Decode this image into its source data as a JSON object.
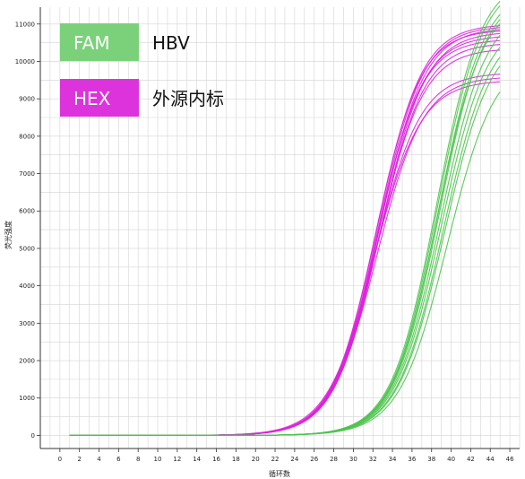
{
  "chart_data": {
    "type": "line",
    "title": "",
    "xlabel": "循环数",
    "ylabel": "荧光强度",
    "xlim": [
      -2,
      47
    ],
    "ylim": [
      -350,
      11450
    ],
    "x_ticks": [
      0,
      2,
      4,
      6,
      8,
      10,
      12,
      14,
      16,
      18,
      20,
      22,
      24,
      26,
      28,
      30,
      32,
      34,
      36,
      38,
      40,
      42,
      44,
      46
    ],
    "y_ticks": [
      0,
      1000,
      2000,
      3000,
      4000,
      5000,
      6000,
      7000,
      8000,
      9000,
      10000,
      11000
    ],
    "grid": true,
    "legend_position": "top-left",
    "colors": {
      "FAM": "#4cc44c",
      "HEX": "#dd22dd",
      "grid": "#d4d4d4",
      "axis": "#333333",
      "legend_fam_box": "#7ad17a",
      "legend_hex_box": "#dd33dd"
    },
    "legend": [
      {
        "box": "FAM",
        "label": "HBV"
      },
      {
        "box": "HEX",
        "label": "外源内标"
      }
    ],
    "x_range": [
      1,
      45
    ],
    "series": [
      {
        "group": "HEX",
        "plateau": 11000,
        "midpoint": 32.4,
        "slope": 2.3
      },
      {
        "group": "HEX",
        "plateau": 10950,
        "midpoint": 32.5,
        "slope": 2.3
      },
      {
        "group": "HEX",
        "plateau": 10900,
        "midpoint": 32.6,
        "slope": 2.32
      },
      {
        "group": "HEX",
        "plateau": 10850,
        "midpoint": 32.3,
        "slope": 2.28
      },
      {
        "group": "HEX",
        "plateau": 10800,
        "midpoint": 32.7,
        "slope": 2.33
      },
      {
        "group": "HEX",
        "plateau": 10700,
        "midpoint": 32.5,
        "slope": 2.31
      },
      {
        "group": "HEX",
        "plateau": 10600,
        "midpoint": 32.4,
        "slope": 2.29
      },
      {
        "group": "HEX",
        "plateau": 10500,
        "midpoint": 32.6,
        "slope": 2.3
      },
      {
        "group": "HEX",
        "plateau": 10350,
        "midpoint": 32.5,
        "slope": 2.32
      },
      {
        "group": "HEX",
        "plateau": 9700,
        "midpoint": 32.2,
        "slope": 2.35
      },
      {
        "group": "HEX",
        "plateau": 9600,
        "midpoint": 32.4,
        "slope": 2.36
      },
      {
        "group": "HEX",
        "plateau": 9500,
        "midpoint": 32.1,
        "slope": 2.4
      },
      {
        "group": "FAM",
        "plateau": 12300,
        "midpoint": 38.5,
        "slope": 2.3
      },
      {
        "group": "FAM",
        "plateau": 12200,
        "midpoint": 38.6,
        "slope": 2.3
      },
      {
        "group": "FAM",
        "plateau": 12000,
        "midpoint": 38.7,
        "slope": 2.32
      },
      {
        "group": "FAM",
        "plateau": 11900,
        "midpoint": 38.8,
        "slope": 2.33
      },
      {
        "group": "FAM",
        "plateau": 11700,
        "midpoint": 38.6,
        "slope": 2.31
      },
      {
        "group": "FAM",
        "plateau": 11500,
        "midpoint": 38.9,
        "slope": 2.35
      },
      {
        "group": "FAM",
        "plateau": 11200,
        "midpoint": 39.0,
        "slope": 2.36
      },
      {
        "group": "FAM",
        "plateau": 11000,
        "midpoint": 39.2,
        "slope": 2.38
      },
      {
        "group": "FAM",
        "plateau": 10800,
        "midpoint": 39.3,
        "slope": 2.4
      },
      {
        "group": "FAM",
        "plateau": 10200,
        "midpoint": 39.6,
        "slope": 2.45
      }
    ]
  }
}
